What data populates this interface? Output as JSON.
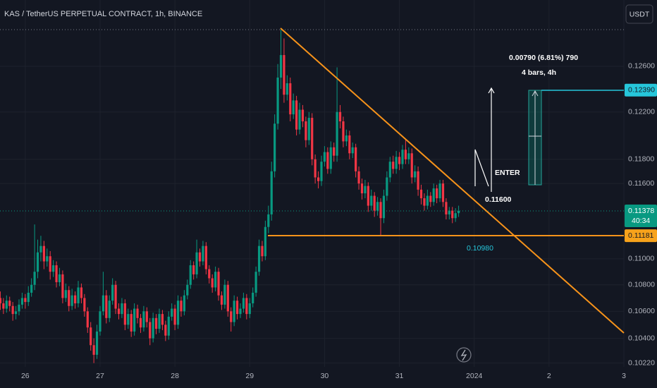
{
  "chart_data": {
    "type": "candlestick",
    "title": "KAS / TetherUS PERPETUAL CONTRACT, 1h, BINANCE",
    "currency": "USDT",
    "log": true,
    "grid": true,
    "up_color": "#089981",
    "down_color": "#f23645",
    "xlim": [
      -8.1,
      192
    ],
    "xticks": [
      {
        "value": 0,
        "label": "26"
      },
      {
        "value": 24,
        "label": "27"
      },
      {
        "value": 48,
        "label": "28"
      },
      {
        "value": 72,
        "label": "29"
      },
      {
        "value": 96,
        "label": "30"
      },
      {
        "value": 120,
        "label": "31"
      },
      {
        "value": 144,
        "label": "2024"
      },
      {
        "value": 168,
        "label": "2"
      },
      {
        "value": 192,
        "label": "3"
      }
    ],
    "ylim": [
      0.10193,
      0.13203
    ],
    "yticks": [
      {
        "value": 0.1022,
        "label": "0.10220"
      },
      {
        "value": 0.104,
        "label": "0.10400"
      },
      {
        "value": 0.106,
        "label": "0.10600"
      },
      {
        "value": 0.108,
        "label": "0.10800"
      },
      {
        "value": 0.11,
        "label": "0.11000"
      },
      {
        "value": 0.116,
        "label": "0.11600"
      },
      {
        "value": 0.118,
        "label": "0.11800"
      },
      {
        "value": 0.122,
        "label": "0.12200"
      },
      {
        "value": 0.126,
        "label": "0.12600"
      }
    ],
    "price_labels": [
      {
        "value": 0.1239,
        "label": "0.12390",
        "color": "#26c6da"
      },
      {
        "value": 0.11378,
        "label": "0.11378",
        "color": "#089981",
        "countdown": "40:34"
      },
      {
        "value": 0.11181,
        "label": "0.11181",
        "color": "#f7a21b"
      }
    ],
    "annotations": [
      "0.00790 (6.81%) 790",
      "4 bars, 4h",
      "ENTER",
      "0.11600",
      "0.10980"
    ],
    "x": [
      -8,
      -7,
      -6,
      -5,
      -4,
      -3,
      -2,
      -1,
      0,
      1,
      2,
      3,
      4,
      5,
      6,
      7,
      8,
      9,
      10,
      11,
      12,
      13,
      14,
      15,
      16,
      17,
      18,
      19,
      20,
      21,
      22,
      23,
      24,
      25,
      26,
      27,
      28,
      29,
      30,
      31,
      32,
      33,
      34,
      35,
      36,
      37,
      38,
      39,
      40,
      41,
      42,
      43,
      44,
      45,
      46,
      47,
      48,
      49,
      50,
      51,
      52,
      53,
      54,
      55,
      56,
      57,
      58,
      59,
      60,
      61,
      62,
      63,
      64,
      65,
      66,
      67,
      68,
      69,
      70,
      71,
      72,
      73,
      74,
      75,
      76,
      77,
      78,
      79,
      80,
      81,
      82,
      83,
      84,
      85,
      86,
      87,
      88,
      89,
      90,
      91,
      92,
      93,
      94,
      95,
      96,
      97,
      98,
      99,
      100,
      101,
      102,
      103,
      104,
      105,
      106,
      107,
      108,
      109,
      110,
      111,
      112,
      113,
      114,
      115,
      116,
      117,
      118,
      119,
      120,
      121,
      122,
      123,
      124,
      125,
      126,
      127,
      128,
      129,
      130,
      131,
      132,
      133,
      134,
      135,
      136,
      137,
      138,
      139
    ],
    "candles": [
      [
        0.107,
        0.1075,
        0.1061,
        0.1066
      ],
      [
        0.1066,
        0.107,
        0.1058,
        0.1062
      ],
      [
        0.1062,
        0.1072,
        0.1059,
        0.1068
      ],
      [
        0.1068,
        0.1071,
        0.106,
        0.1064
      ],
      [
        0.1064,
        0.1067,
        0.1053,
        0.1058
      ],
      [
        0.1058,
        0.1064,
        0.1054,
        0.106
      ],
      [
        0.106,
        0.1069,
        0.1057,
        0.1065
      ],
      [
        0.1065,
        0.1074,
        0.1062,
        0.107
      ],
      [
        0.107,
        0.1073,
        0.1062,
        0.1067
      ],
      [
        0.1067,
        0.1079,
        0.1064,
        0.1074
      ],
      [
        0.1074,
        0.1085,
        0.1071,
        0.108
      ],
      [
        0.108,
        0.1127,
        0.1076,
        0.109
      ],
      [
        0.109,
        0.1115,
        0.1085,
        0.1105
      ],
      [
        0.1105,
        0.1118,
        0.1098,
        0.111
      ],
      [
        0.111,
        0.1114,
        0.1092,
        0.1098
      ],
      [
        0.1098,
        0.1108,
        0.1094,
        0.1102
      ],
      [
        0.1102,
        0.1106,
        0.1084,
        0.109
      ],
      [
        0.109,
        0.1099,
        0.1086,
        0.1095
      ],
      [
        0.1095,
        0.1098,
        0.1078,
        0.1082
      ],
      [
        0.1082,
        0.1093,
        0.1079,
        0.1088
      ],
      [
        0.1088,
        0.1091,
        0.1066,
        0.107
      ],
      [
        0.107,
        0.1081,
        0.1067,
        0.1076
      ],
      [
        0.1076,
        0.1079,
        0.106,
        0.1064
      ],
      [
        0.1064,
        0.1077,
        0.1061,
        0.1072
      ],
      [
        0.1072,
        0.1075,
        0.1062,
        0.1066
      ],
      [
        0.1066,
        0.1083,
        0.1063,
        0.1078
      ],
      [
        0.1078,
        0.1081,
        0.1066,
        0.107
      ],
      [
        0.107,
        0.1073,
        0.1056,
        0.106
      ],
      [
        0.106,
        0.1063,
        0.1044,
        0.1048
      ],
      [
        0.1048,
        0.1052,
        0.1031,
        0.1035
      ],
      [
        0.1035,
        0.104,
        0.1022,
        0.1028
      ],
      [
        0.1028,
        0.105,
        0.1025,
        0.1045
      ],
      [
        0.1045,
        0.1064,
        0.1042,
        0.106
      ],
      [
        0.106,
        0.109,
        0.1057,
        0.1072
      ],
      [
        0.1072,
        0.1076,
        0.1051,
        0.1055
      ],
      [
        0.1055,
        0.1072,
        0.1052,
        0.1068
      ],
      [
        0.1068,
        0.1085,
        0.1065,
        0.108
      ],
      [
        0.108,
        0.1083,
        0.1058,
        0.1062
      ],
      [
        0.1062,
        0.1066,
        0.1054,
        0.1058
      ],
      [
        0.1058,
        0.107,
        0.1055,
        0.1066
      ],
      [
        0.1066,
        0.1069,
        0.1046,
        0.105
      ],
      [
        0.105,
        0.1062,
        0.1047,
        0.1058
      ],
      [
        0.1058,
        0.1061,
        0.1041,
        0.1045
      ],
      [
        0.1045,
        0.1066,
        0.1042,
        0.1062
      ],
      [
        0.1062,
        0.1065,
        0.1051,
        0.1055
      ],
      [
        0.1055,
        0.1058,
        0.1044,
        0.1048
      ],
      [
        0.1048,
        0.1064,
        0.1045,
        0.106
      ],
      [
        0.106,
        0.1063,
        0.1048,
        0.1052
      ],
      [
        0.1052,
        0.1055,
        0.1035,
        0.104
      ],
      [
        0.104,
        0.1059,
        0.1037,
        0.1055
      ],
      [
        0.1055,
        0.1058,
        0.1043,
        0.1047
      ],
      [
        0.1047,
        0.1062,
        0.1044,
        0.1058
      ],
      [
        0.1058,
        0.1061,
        0.1046,
        0.105
      ],
      [
        0.105,
        0.1053,
        0.1038,
        0.1042
      ],
      [
        0.1042,
        0.106,
        0.1039,
        0.1056
      ],
      [
        0.1056,
        0.1066,
        0.1053,
        0.1062
      ],
      [
        0.1062,
        0.1065,
        0.1046,
        0.105
      ],
      [
        0.105,
        0.1072,
        0.1047,
        0.1068
      ],
      [
        0.1068,
        0.1071,
        0.1056,
        0.106
      ],
      [
        0.106,
        0.1076,
        0.1057,
        0.1072
      ],
      [
        0.1072,
        0.1084,
        0.1069,
        0.108
      ],
      [
        0.108,
        0.1099,
        0.1077,
        0.1095
      ],
      [
        0.1095,
        0.1098,
        0.1084,
        0.1088
      ],
      [
        0.1088,
        0.1115,
        0.1085,
        0.1105
      ],
      [
        0.1105,
        0.1108,
        0.1094,
        0.1098
      ],
      [
        0.1098,
        0.1114,
        0.1095,
        0.111
      ],
      [
        0.111,
        0.1113,
        0.1088,
        0.1092
      ],
      [
        0.1092,
        0.1095,
        0.1081,
        0.1085
      ],
      [
        0.1085,
        0.1088,
        0.1074,
        0.1078
      ],
      [
        0.1078,
        0.1094,
        0.1075,
        0.109
      ],
      [
        0.109,
        0.1093,
        0.1068,
        0.1072
      ],
      [
        0.1072,
        0.1075,
        0.1061,
        0.1065
      ],
      [
        0.1065,
        0.1084,
        0.1062,
        0.108
      ],
      [
        0.108,
        0.1083,
        0.1056,
        0.106
      ],
      [
        0.106,
        0.1063,
        0.1045,
        0.1052
      ],
      [
        0.1052,
        0.1072,
        0.1049,
        0.1068
      ],
      [
        0.1068,
        0.1071,
        0.1054,
        0.1058
      ],
      [
        0.1058,
        0.1066,
        0.1055,
        0.1062
      ],
      [
        0.1062,
        0.1074,
        0.1059,
        0.107
      ],
      [
        0.107,
        0.1073,
        0.1054,
        0.1058
      ],
      [
        0.1058,
        0.107,
        0.1055,
        0.1066
      ],
      [
        0.1066,
        0.1078,
        0.1063,
        0.1074
      ],
      [
        0.1074,
        0.1094,
        0.1071,
        0.109
      ],
      [
        0.109,
        0.1115,
        0.1087,
        0.111
      ],
      [
        0.111,
        0.1114,
        0.1098,
        0.1102
      ],
      [
        0.1102,
        0.113,
        0.1099,
        0.1125
      ],
      [
        0.1125,
        0.1142,
        0.112,
        0.1135
      ],
      [
        0.1135,
        0.1178,
        0.113,
        0.117
      ],
      [
        0.117,
        0.1218,
        0.1165,
        0.121
      ],
      [
        0.121,
        0.1262,
        0.1205,
        0.125
      ],
      [
        0.125,
        0.1293,
        0.124,
        0.127
      ],
      [
        0.127,
        0.1285,
        0.1228,
        0.1235
      ],
      [
        0.1235,
        0.1252,
        0.123,
        0.1245
      ],
      [
        0.1245,
        0.125,
        0.1212,
        0.1218
      ],
      [
        0.1218,
        0.1236,
        0.1214,
        0.123
      ],
      [
        0.123,
        0.1234,
        0.12,
        0.1205
      ],
      [
        0.1205,
        0.1228,
        0.1201,
        0.1222
      ],
      [
        0.1222,
        0.1226,
        0.1207,
        0.1212
      ],
      [
        0.1212,
        0.1216,
        0.119,
        0.1196
      ],
      [
        0.1196,
        0.122,
        0.1192,
        0.1215
      ],
      [
        0.1215,
        0.1219,
        0.1175,
        0.118
      ],
      [
        0.118,
        0.1184,
        0.116,
        0.1165
      ],
      [
        0.1165,
        0.117,
        0.1156,
        0.1162
      ],
      [
        0.1162,
        0.1183,
        0.1158,
        0.1178
      ],
      [
        0.1178,
        0.1191,
        0.1174,
        0.1186
      ],
      [
        0.1186,
        0.119,
        0.1168,
        0.1172
      ],
      [
        0.1172,
        0.1195,
        0.1168,
        0.119
      ],
      [
        0.119,
        0.1194,
        0.1178,
        0.1183
      ],
      [
        0.1183,
        0.1259,
        0.1178,
        0.122
      ],
      [
        0.122,
        0.1226,
        0.1206,
        0.1212
      ],
      [
        0.1212,
        0.1216,
        0.119,
        0.1195
      ],
      [
        0.1195,
        0.1205,
        0.1191,
        0.12
      ],
      [
        0.12,
        0.1204,
        0.118,
        0.1185
      ],
      [
        0.1185,
        0.1194,
        0.1181,
        0.119
      ],
      [
        0.119,
        0.1193,
        0.1165,
        0.117
      ],
      [
        0.117,
        0.1174,
        0.1155,
        0.116
      ],
      [
        0.116,
        0.1164,
        0.1147,
        0.1152
      ],
      [
        0.1152,
        0.1163,
        0.1148,
        0.1158
      ],
      [
        0.1158,
        0.1161,
        0.1137,
        0.1142
      ],
      [
        0.1142,
        0.1155,
        0.1138,
        0.115
      ],
      [
        0.115,
        0.1153,
        0.1133,
        0.1138
      ],
      [
        0.1138,
        0.1149,
        0.1134,
        0.1145
      ],
      [
        0.1145,
        0.1148,
        0.1118,
        0.1132
      ],
      [
        0.1132,
        0.1155,
        0.1128,
        0.115
      ],
      [
        0.115,
        0.117,
        0.1146,
        0.1165
      ],
      [
        0.1165,
        0.1182,
        0.1161,
        0.1178
      ],
      [
        0.1178,
        0.1183,
        0.1168,
        0.1172
      ],
      [
        0.1172,
        0.1187,
        0.1168,
        0.1182
      ],
      [
        0.1182,
        0.1186,
        0.1171,
        0.1176
      ],
      [
        0.1176,
        0.1192,
        0.1172,
        0.1188
      ],
      [
        0.1188,
        0.1197,
        0.1176,
        0.118
      ],
      [
        0.118,
        0.119,
        0.1176,
        0.1185
      ],
      [
        0.1185,
        0.1189,
        0.116,
        0.1165
      ],
      [
        0.1165,
        0.1175,
        0.1161,
        0.117
      ],
      [
        0.117,
        0.1174,
        0.115,
        0.1155
      ],
      [
        0.1155,
        0.1159,
        0.1143,
        0.1148
      ],
      [
        0.1148,
        0.1152,
        0.1138,
        0.1142
      ],
      [
        0.1142,
        0.1155,
        0.1139,
        0.115
      ],
      [
        0.115,
        0.1153,
        0.1141,
        0.1145
      ],
      [
        0.1145,
        0.116,
        0.1142,
        0.1156
      ],
      [
        0.1156,
        0.1159,
        0.1144,
        0.1148
      ],
      [
        0.1148,
        0.1163,
        0.1145,
        0.116
      ],
      [
        0.116,
        0.1163,
        0.1141,
        0.1145
      ],
      [
        0.1145,
        0.1148,
        0.1131,
        0.1135
      ],
      [
        0.1135,
        0.1141,
        0.1131,
        0.1138
      ],
      [
        0.1138,
        0.1141,
        0.1128,
        0.1132
      ],
      [
        0.1132,
        0.114,
        0.1129,
        0.1136
      ],
      [
        0.1136,
        0.1142,
        0.1133,
        0.11378
      ]
    ]
  }
}
